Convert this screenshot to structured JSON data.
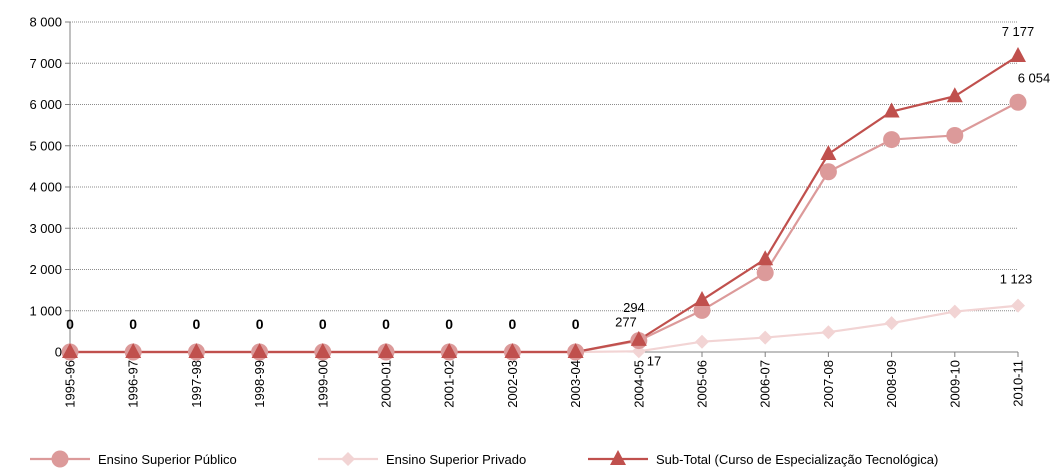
{
  "chart_data": {
    "type": "line",
    "categories": [
      "1995-96",
      "1996-97",
      "1997-98",
      "1998-99",
      "1999-00",
      "2000-01",
      "2001-02",
      "2002-03",
      "2003-04",
      "2004-05",
      "2005-06",
      "2006-07",
      "2007-08",
      "2008-09",
      "2009-10",
      "2010-11"
    ],
    "ylim": [
      0,
      8000
    ],
    "yticks": [
      0,
      1000,
      2000,
      3000,
      4000,
      5000,
      6000,
      7000,
      8000
    ],
    "ytick_labels": [
      "0",
      "1 000",
      "2 000",
      "3 000",
      "4 000",
      "5 000",
      "6 000",
      "7 000",
      "8 000"
    ],
    "grid": true,
    "legend_position": "bottom",
    "series": [
      {
        "name": "Ensino Superior Público",
        "color": "#DC9A9A",
        "marker": "circle",
        "values": [
          0,
          0,
          0,
          0,
          0,
          0,
          0,
          0,
          0,
          277,
          1010,
          1920,
          4370,
          5150,
          5250,
          6054
        ]
      },
      {
        "name": "Ensino Superior Privado",
        "color": "#F2D4D4",
        "marker": "diamond",
        "values": [
          0,
          0,
          0,
          0,
          0,
          0,
          0,
          0,
          0,
          17,
          250,
          350,
          480,
          700,
          980,
          1123
        ]
      },
      {
        "name": "Sub-Total (Curso de Especialização Tecnológica)",
        "color": "#C0504D",
        "marker": "triangle",
        "values": [
          0,
          0,
          0,
          0,
          0,
          0,
          0,
          0,
          0,
          294,
          1260,
          2250,
          4800,
          5830,
          6200,
          7177
        ]
      }
    ],
    "zero_labels": [
      "0",
      "0",
      "0",
      "0",
      "0",
      "0",
      "0",
      "0",
      "0"
    ],
    "annotations": [
      {
        "text": "277",
        "category": "2004-05",
        "series": "Ensino Superior Público"
      },
      {
        "text": "294",
        "category": "2004-05",
        "series": "Sub-Total (Curso de Especialização Tecnológica)"
      },
      {
        "text": "17",
        "category": "2004-05",
        "series": "Ensino Superior Privado"
      },
      {
        "text": "6 054",
        "category": "2010-11",
        "series": "Ensino Superior Público"
      },
      {
        "text": "7 177",
        "category": "2010-11",
        "series": "Sub-Total (Curso de Especialização Tecnológica)"
      },
      {
        "text": "1 123",
        "category": "2010-11",
        "series": "Ensino Superior Privado"
      }
    ]
  }
}
